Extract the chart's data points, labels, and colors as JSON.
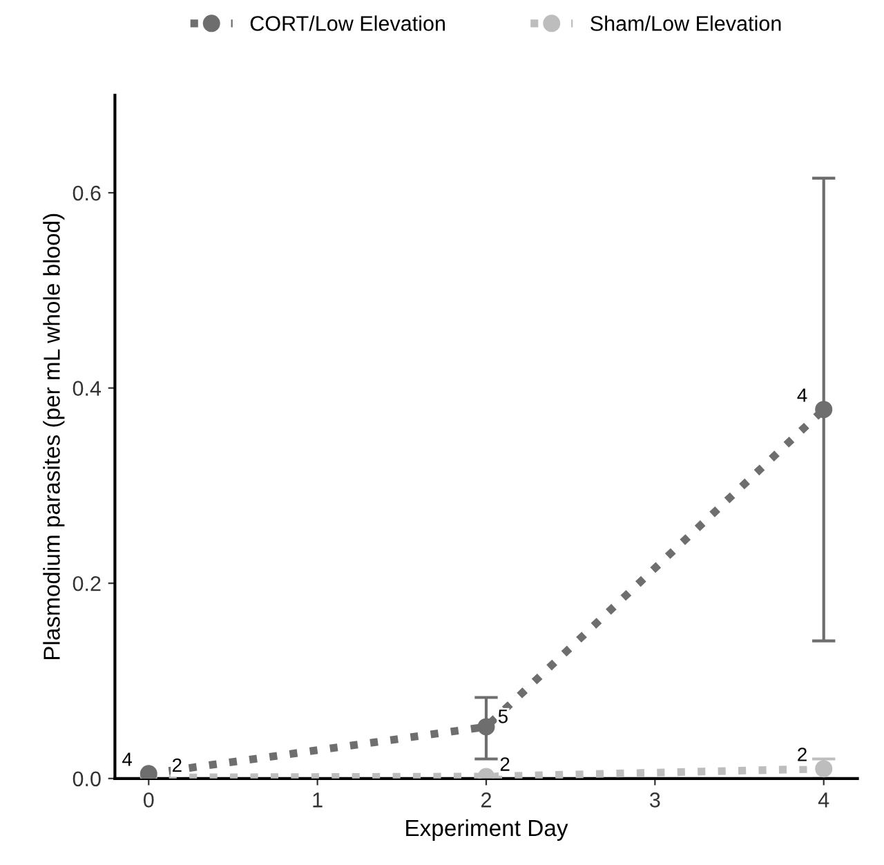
{
  "chart_data": {
    "type": "line",
    "xlabel": "Experiment Day",
    "ylabel": "Plasmodium parasites (per mL whole blood)",
    "x": [
      0,
      2,
      4
    ],
    "series": [
      {
        "name": "CORT/Low Elevation",
        "color": "#6e6e6e",
        "values": [
          0.005,
          0.053,
          0.378
        ],
        "errors": [
          null,
          [
            0.02,
            0.083
          ],
          [
            0.141,
            0.615
          ]
        ]
      },
      {
        "name": "Sham/Low Elevation",
        "color": "#bdbdbd",
        "values": [
          0.001,
          0.002,
          0.01
        ],
        "errors": [
          null,
          null,
          [
            0.0,
            0.02
          ]
        ]
      }
    ],
    "annotations": [
      {
        "text": "4",
        "x": 0,
        "y": 0.005
      },
      {
        "text": "2",
        "x": 0,
        "y": 0.001
      },
      {
        "text": "5",
        "x": 2,
        "y": 0.053
      },
      {
        "text": "2",
        "x": 2,
        "y": 0.002
      },
      {
        "text": "4",
        "x": 4,
        "y": 0.378
      },
      {
        "text": "2",
        "x": 4,
        "y": 0.01
      }
    ],
    "xlim": [
      -0.2,
      4.2
    ],
    "ylim": [
      0,
      0.7
    ],
    "xticks": [
      0,
      1,
      2,
      3,
      4
    ],
    "yticks": [
      {
        "value": 0,
        "label": "0.0"
      },
      {
        "value": 0.2,
        "label": "0.2"
      },
      {
        "value": 0.4,
        "label": "0.4"
      },
      {
        "value": 0.6,
        "label": "0.6"
      }
    ],
    "marker": "circle",
    "line_style": "dotted",
    "legend": "top",
    "grid": false
  }
}
